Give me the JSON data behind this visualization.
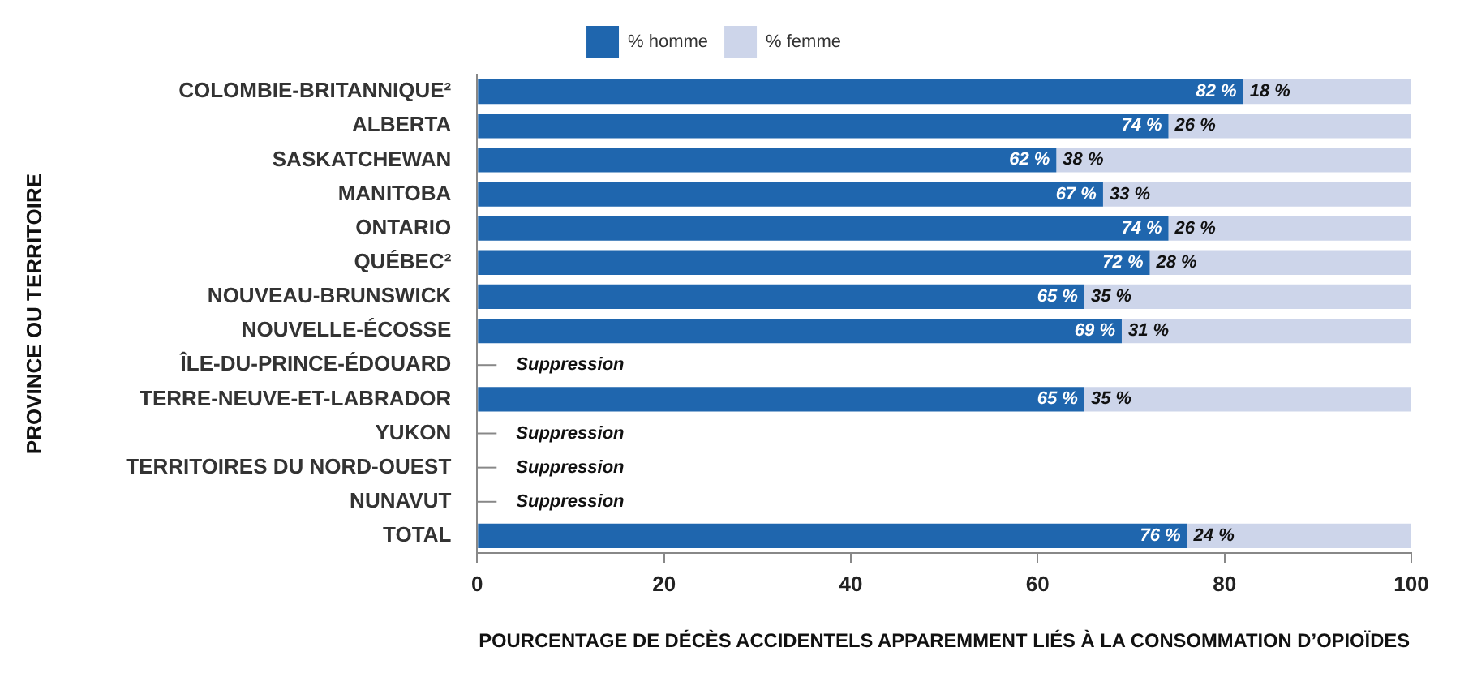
{
  "chart_data": {
    "type": "bar",
    "orientation": "horizontal",
    "stacked": true,
    "xlabel": "POURCENTAGE DE DÉCÈS ACCIDENTELS APPAREMMENT LIÉS À LA CONSOMMATION D’OPIOÏDES",
    "ylabel": "PROVINCE OU TERRITOIRE",
    "categories": [
      "COLOMBIE-BRITANNIQUE²",
      "ALBERTA",
      "SASKATCHEWAN",
      "MANITOBA",
      "ONTARIO",
      "QUÉBEC²",
      "NOUVEAU-BRUNSWICK",
      "NOUVELLE-ÉCOSSE",
      "ÎLE-DU-PRINCE-ÉDOUARD",
      "TERRE-NEUVE-ET-LABRADOR",
      "YUKON",
      "TERRITOIRES DU NORD-OUEST",
      "NUNAVUT",
      "TOTAL"
    ],
    "series": [
      {
        "name": "% homme",
        "color": "#1f66ae",
        "values": [
          82,
          74,
          62,
          67,
          74,
          72,
          65,
          69,
          null,
          65,
          null,
          null,
          null,
          76
        ],
        "value_labels": [
          "82 %",
          "74 %",
          "62 %",
          "67 %",
          "74 %",
          "72 %",
          "65 %",
          "69 %",
          null,
          "65 %",
          null,
          null,
          null,
          "76 %"
        ]
      },
      {
        "name": "% femme",
        "color": "#cdd5ea",
        "values": [
          18,
          26,
          38,
          33,
          26,
          28,
          35,
          31,
          null,
          35,
          null,
          null,
          null,
          24
        ],
        "value_labels": [
          "18 %",
          "26 %",
          "38 %",
          "33 %",
          "26 %",
          "28 %",
          "35 %",
          "31 %",
          null,
          "35 %",
          null,
          null,
          null,
          "24 %"
        ]
      }
    ],
    "xlim": [
      0,
      100
    ],
    "xticks": [
      0,
      20,
      40,
      60,
      80,
      100
    ],
    "grid": false,
    "legend": "top",
    "annotations": [
      "Suppression",
      "Suppression",
      "Suppression",
      "Suppression"
    ]
  }
}
